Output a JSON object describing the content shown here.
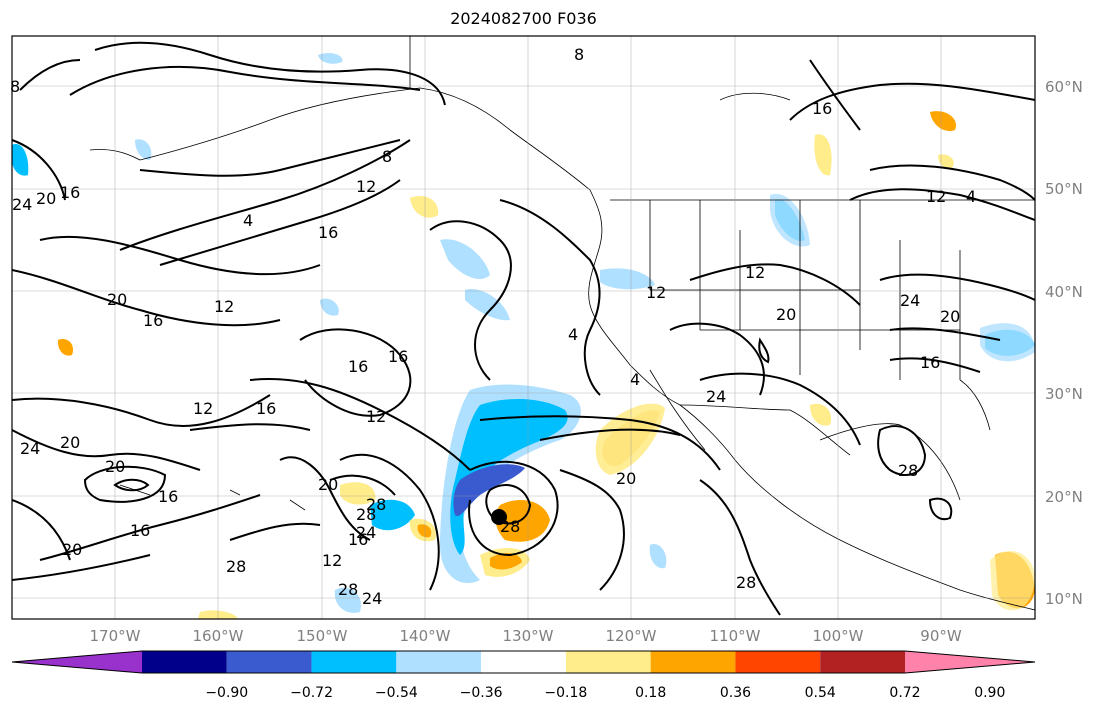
{
  "title": "2024082700 F036",
  "map": {
    "lat_labels": [
      "60°N",
      "50°N",
      "40°N",
      "30°N",
      "20°N",
      "10°N"
    ],
    "lon_labels": [
      "170°W",
      "160°W",
      "150°W",
      "140°W",
      "130°W",
      "120°W",
      "110°W",
      "100°W",
      "90°W"
    ],
    "contour_labels": [
      "8",
      "8",
      "8",
      "4",
      "16",
      "16",
      "12",
      "12",
      "12",
      "16",
      "24",
      "20",
      "16",
      "4",
      "16",
      "20",
      "16",
      "12",
      "16",
      "16",
      "12",
      "16",
      "12",
      "20",
      "24",
      "20",
      "20",
      "20",
      "24",
      "16",
      "12",
      "28",
      "24",
      "28",
      "28",
      "28",
      "28",
      "20",
      "28",
      "4",
      "24",
      "20",
      "12",
      "24",
      "20",
      "16",
      "28",
      "4"
    ]
  },
  "colorbar": {
    "colors": [
      "#9932cc",
      "#00008b",
      "#3a5bd0",
      "#00bfff",
      "#b0e0ff",
      "#ffffff",
      "#ffec8b",
      "#ffa500",
      "#ff4500",
      "#b22222",
      "#ff82ab"
    ],
    "ticks": [
      "−0.90",
      "−0.72",
      "−0.54",
      "−0.36",
      "−0.18",
      "0.18",
      "0.36",
      "0.54",
      "0.72",
      "0.90"
    ]
  }
}
